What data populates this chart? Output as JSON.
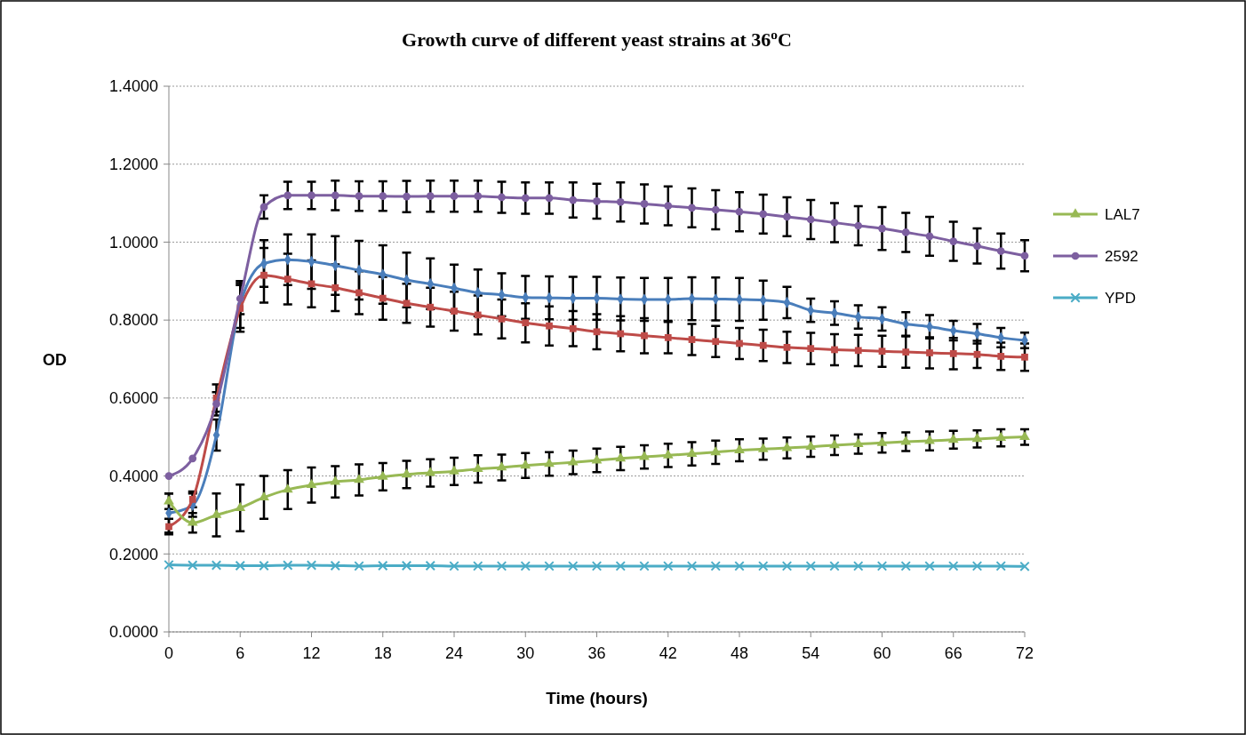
{
  "chart_data": {
    "type": "line",
    "title": "Growth curve of different yeast strains at 36$^{o}$C",
    "xlabel": "Time (hours)",
    "ylabel": "OD",
    "x": [
      0,
      2,
      4,
      6,
      8,
      10,
      12,
      14,
      16,
      18,
      20,
      22,
      24,
      26,
      28,
      30,
      32,
      34,
      36,
      38,
      40,
      42,
      44,
      46,
      48,
      50,
      52,
      54,
      56,
      58,
      60,
      62,
      64,
      66,
      68,
      70,
      72
    ],
    "xlim": [
      0,
      72
    ],
    "xticks": [
      0,
      6,
      12,
      18,
      24,
      30,
      36,
      42,
      48,
      54,
      60,
      66,
      72
    ],
    "ylim": [
      0,
      1.4
    ],
    "yticks": [
      {
        "value": 0,
        "label": "0.0000"
      },
      {
        "value": 0.2,
        "label": "0.2000"
      },
      {
        "value": 0.4,
        "label": "0.4000"
      },
      {
        "value": 0.6,
        "label": "0.6000"
      },
      {
        "value": 0.8,
        "label": "0.8000"
      },
      {
        "value": 1,
        "label": "1.0000"
      },
      {
        "value": 1.2,
        "label": "1.2000"
      },
      {
        "value": 1.4,
        "label": "1.4000"
      }
    ],
    "grid": "y",
    "legend": "right",
    "line_style": "solid",
    "series": [
      {
        "color": "#4a7ebb",
        "marker": "diamond",
        "values": [
          0.305,
          0.325,
          0.505,
          0.84,
          0.945,
          0.955,
          0.95,
          0.94,
          0.928,
          0.917,
          0.903,
          0.893,
          0.882,
          0.87,
          0.865,
          0.858,
          0.857,
          0.856,
          0.856,
          0.854,
          0.853,
          0.853,
          0.855,
          0.854,
          0.853,
          0.851,
          0.845,
          0.825,
          0.818,
          0.808,
          0.803,
          0.79,
          0.783,
          0.773,
          0.765,
          0.755,
          0.748
        ],
        "errors": [
          0.05,
          0.03,
          0.04,
          0.06,
          0.06,
          0.065,
          0.07,
          0.075,
          0.075,
          0.075,
          0.07,
          0.065,
          0.06,
          0.06,
          0.055,
          0.055,
          0.055,
          0.055,
          0.055,
          0.055,
          0.055,
          0.055,
          0.055,
          0.055,
          0.055,
          0.05,
          0.04,
          0.03,
          0.03,
          0.03,
          0.03,
          0.03,
          0.03,
          0.025,
          0.025,
          0.025,
          0.02
        ]
      },
      {
        "color": "#be4b48",
        "marker": "square",
        "values": [
          0.27,
          0.34,
          0.6,
          0.83,
          0.915,
          0.905,
          0.893,
          0.883,
          0.87,
          0.856,
          0.843,
          0.833,
          0.823,
          0.813,
          0.803,
          0.793,
          0.785,
          0.778,
          0.77,
          0.765,
          0.76,
          0.755,
          0.75,
          0.745,
          0.74,
          0.735,
          0.73,
          0.727,
          0.724,
          0.722,
          0.72,
          0.718,
          0.716,
          0.714,
          0.712,
          0.707,
          0.705
        ],
        "errors": [
          0.02,
          0.02,
          0.035,
          0.06,
          0.07,
          0.065,
          0.06,
          0.06,
          0.055,
          0.055,
          0.05,
          0.05,
          0.05,
          0.05,
          0.05,
          0.05,
          0.05,
          0.045,
          0.045,
          0.045,
          0.045,
          0.04,
          0.04,
          0.04,
          0.04,
          0.04,
          0.04,
          0.04,
          0.04,
          0.04,
          0.04,
          0.04,
          0.04,
          0.04,
          0.035,
          0.035,
          0.035
        ]
      },
      {
        "name": "LAL7",
        "color": "#98b954",
        "marker": "triangle",
        "values": [
          0.335,
          0.28,
          0.3,
          0.318,
          0.345,
          0.365,
          0.377,
          0.385,
          0.39,
          0.398,
          0.404,
          0.408,
          0.412,
          0.418,
          0.422,
          0.427,
          0.431,
          0.435,
          0.44,
          0.445,
          0.449,
          0.453,
          0.457,
          0.461,
          0.466,
          0.469,
          0.472,
          0.475,
          0.479,
          0.482,
          0.485,
          0.488,
          0.49,
          0.493,
          0.495,
          0.498,
          0.5
        ],
        "errors": [
          0.02,
          0.025,
          0.055,
          0.06,
          0.055,
          0.05,
          0.045,
          0.04,
          0.04,
          0.035,
          0.035,
          0.035,
          0.035,
          0.035,
          0.033,
          0.032,
          0.03,
          0.03,
          0.03,
          0.03,
          0.03,
          0.03,
          0.03,
          0.03,
          0.028,
          0.027,
          0.027,
          0.026,
          0.025,
          0.025,
          0.025,
          0.024,
          0.024,
          0.023,
          0.022,
          0.022,
          0.02
        ]
      },
      {
        "name": "2592",
        "color": "#7d5fa0",
        "marker": "circle",
        "values": [
          0.4,
          0.445,
          0.585,
          0.855,
          1.09,
          1.12,
          1.12,
          1.12,
          1.118,
          1.118,
          1.117,
          1.118,
          1.118,
          1.118,
          1.115,
          1.113,
          1.113,
          1.108,
          1.105,
          1.103,
          1.098,
          1.093,
          1.088,
          1.083,
          1.078,
          1.072,
          1.065,
          1.058,
          1.05,
          1.042,
          1.035,
          1.025,
          1.015,
          1.002,
          0.99,
          0.977,
          0.965
        ],
        "errors": [
          null,
          null,
          0.03,
          0.04,
          0.03,
          0.035,
          0.035,
          0.038,
          0.038,
          0.038,
          0.04,
          0.04,
          0.04,
          0.04,
          0.04,
          0.04,
          0.04,
          0.045,
          0.045,
          0.05,
          0.05,
          0.05,
          0.05,
          0.05,
          0.05,
          0.05,
          0.05,
          0.05,
          0.05,
          0.05,
          0.055,
          0.05,
          0.05,
          0.05,
          0.045,
          0.045,
          0.04
        ]
      },
      {
        "name": "YPD",
        "color": "#4bacc6",
        "marker": "cross",
        "values": [
          0.172,
          0.171,
          0.171,
          0.17,
          0.17,
          0.171,
          0.171,
          0.17,
          0.169,
          0.17,
          0.17,
          0.17,
          0.169,
          0.169,
          0.169,
          0.169,
          0.169,
          0.169,
          0.169,
          0.169,
          0.169,
          0.169,
          0.169,
          0.169,
          0.169,
          0.169,
          0.169,
          0.169,
          0.169,
          0.169,
          0.169,
          0.169,
          0.169,
          0.169,
          0.169,
          0.169,
          0.168
        ]
      }
    ]
  }
}
